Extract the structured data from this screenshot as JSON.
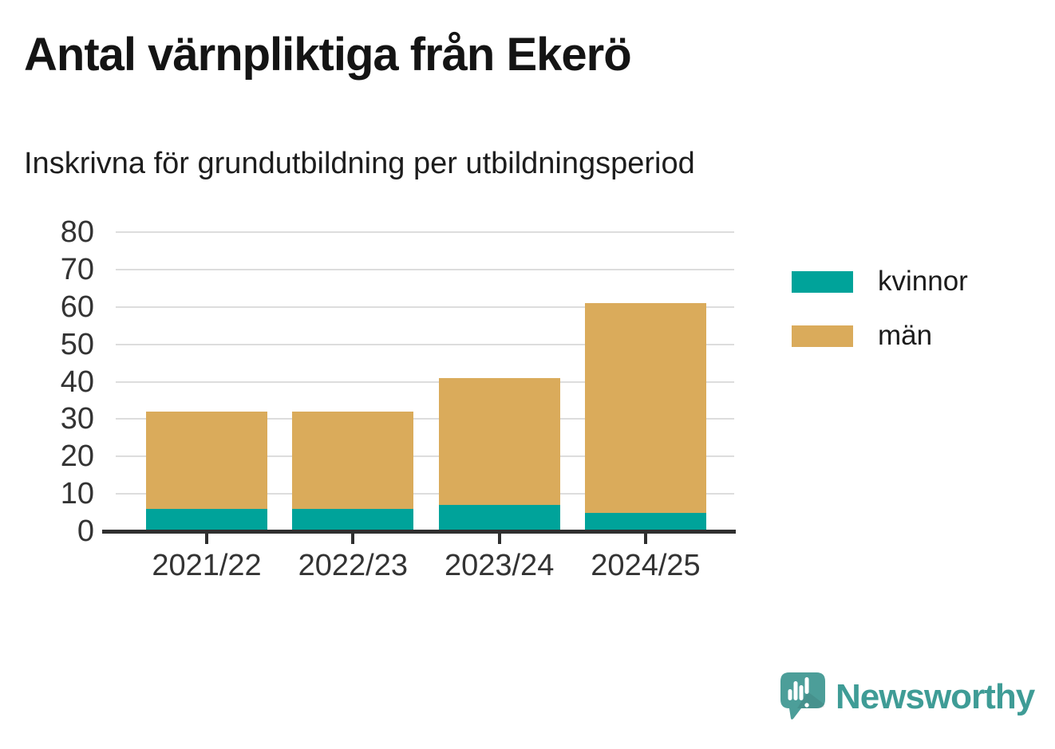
{
  "title": "Antal värnpliktiga från Ekerö",
  "subtitle": "Inskrivna för grundutbildning per utbildningsperiod",
  "legend": {
    "items": [
      {
        "label": "kvinnor",
        "color": "#00A39A"
      },
      {
        "label": "män",
        "color": "#DAAB5B"
      }
    ]
  },
  "branding": {
    "name": "Newsworthy",
    "text_color": "#3F9C96",
    "icon_color": "#4C9E99"
  },
  "chart_data": {
    "type": "bar",
    "stacked": true,
    "title": "Antal värnpliktiga från Ekerö",
    "subtitle": "Inskrivna för grundutbildning per utbildningsperiod",
    "categories": [
      "2021/22",
      "2022/23",
      "2023/24",
      "2024/25"
    ],
    "series": [
      {
        "name": "kvinnor",
        "color": "#00A39A",
        "values": [
          6,
          6,
          7,
          5
        ]
      },
      {
        "name": "män",
        "color": "#DAAB5B",
        "values": [
          26,
          26,
          34,
          56
        ]
      }
    ],
    "totals": [
      32,
      32,
      41,
      61
    ],
    "xlabel": "",
    "ylabel": "",
    "ylim": [
      0,
      80
    ],
    "ytick_step": 10,
    "yticks": [
      0,
      10,
      20,
      30,
      40,
      50,
      60,
      70,
      80
    ],
    "grid": true,
    "legend_position": "right",
    "colors": {
      "gridline": "#DDDDDD",
      "axis": "#2F2F2F",
      "tick_label": "#333333"
    }
  }
}
